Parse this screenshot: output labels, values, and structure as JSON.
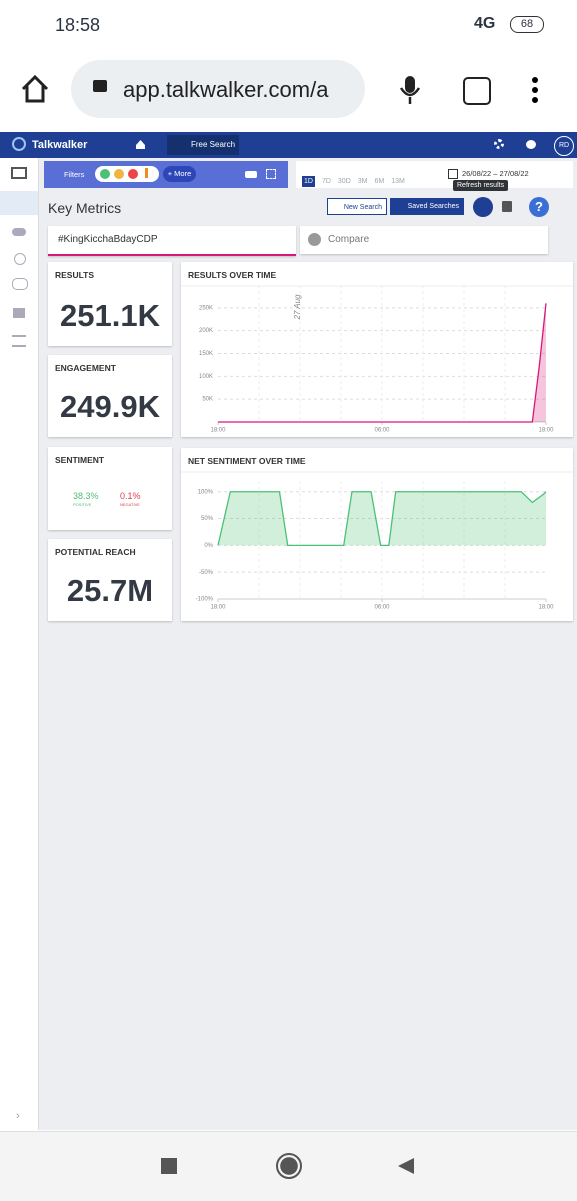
{
  "status_bar": {
    "time": "18:58",
    "network": "4G",
    "battery": "68"
  },
  "browser": {
    "url": "app.talkwalker.com/a"
  },
  "app_nav": {
    "brand": "Talkwalker",
    "search": "Free Search",
    "avatar": "RD"
  },
  "toolbar": {
    "filters": "Filters",
    "more": "+ More",
    "ranges": [
      "1D",
      "7D",
      "30D",
      "3M",
      "6M",
      "13M"
    ],
    "date_range": "26/08/22 – 27/08/22",
    "tooltip": "Refresh results"
  },
  "header": {
    "title": "Key Metrics",
    "new_search": "New Search",
    "saved_searches": "Saved Searches"
  },
  "tabs": {
    "active": "#KingKicchaBdayCDP",
    "compare": "Compare"
  },
  "metrics": {
    "results": {
      "label": "RESULTS",
      "value": "251.1K"
    },
    "engagement": {
      "label": "ENGAGEMENT",
      "value": "249.9K"
    },
    "sentiment": {
      "label": "SENTIMENT",
      "positive": "38.3%",
      "positive_label": "POSITIVE",
      "negative": "0.1%",
      "negative_label": "NEGATIVE"
    },
    "reach": {
      "label": "POTENTIAL REACH",
      "value": "25.7M"
    }
  },
  "chart_data": [
    {
      "type": "area",
      "title": "RESULTS OVER TIME",
      "annotation": "27 Aug",
      "color": "#d6187a",
      "x": [
        0,
        23,
        23.5,
        24
      ],
      "values": [
        0,
        0,
        120000,
        260000
      ],
      "xlim": [
        0,
        24
      ],
      "xticks": [
        {
          "value": 0,
          "label": "18:00"
        },
        {
          "value": 12,
          "label": "06:00"
        },
        {
          "value": 24,
          "label": "18:00"
        }
      ],
      "ylim": [
        0,
        300000
      ],
      "yticks": [
        {
          "value": 50000,
          "label": "50K"
        },
        {
          "value": 100000,
          "label": "100K"
        },
        {
          "value": 150000,
          "label": "150K"
        },
        {
          "value": 200000,
          "label": "200K"
        },
        {
          "value": 250000,
          "label": "250K"
        }
      ],
      "grid": true
    },
    {
      "type": "area",
      "title": "NET SENTIMENT OVER TIME",
      "color": "#4cc074",
      "x": [
        0,
        0.9,
        4.5,
        5.1,
        9.2,
        9.8,
        11.2,
        11.9,
        12.5,
        13,
        22.2,
        23,
        23.8,
        24
      ],
      "values": [
        0,
        100,
        100,
        0,
        0,
        100,
        100,
        0,
        0,
        100,
        100,
        80,
        95,
        100
      ],
      "xlim": [
        0,
        24
      ],
      "xticks": [
        {
          "value": 0,
          "label": "18:00"
        },
        {
          "value": 12,
          "label": "06:00"
        },
        {
          "value": 24,
          "label": "18:00"
        }
      ],
      "ylim": [
        -100,
        120
      ],
      "yticks": [
        {
          "value": 100,
          "label": "100%"
        },
        {
          "value": 50,
          "label": "50%"
        },
        {
          "value": 0,
          "label": "0%"
        },
        {
          "value": -50,
          "label": "-50%"
        },
        {
          "value": -100,
          "label": "-100%"
        }
      ],
      "grid": true
    }
  ]
}
